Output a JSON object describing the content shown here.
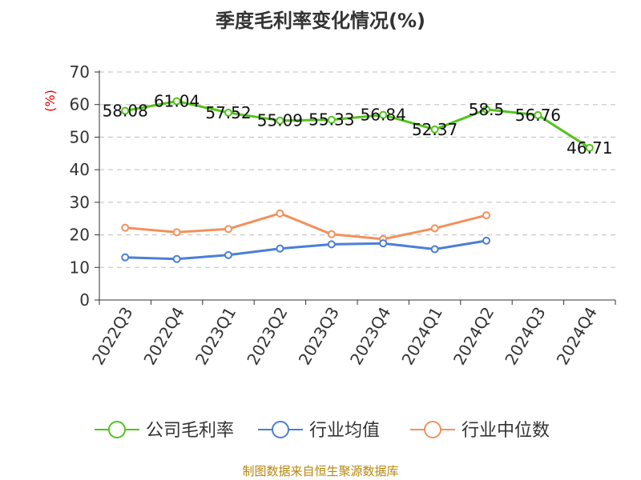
{
  "chart_data": {
    "type": "line",
    "title": "季度毛利率变化情况(%)",
    "ylabel": "(%)",
    "xlabel": "",
    "categories": [
      "2022Q3",
      "2022Q4",
      "2023Q1",
      "2023Q2",
      "2023Q3",
      "2023Q4",
      "2024Q1",
      "2024Q2",
      "2024Q3",
      "2024Q4"
    ],
    "ylim": [
      0,
      70
    ],
    "yticks": [
      0,
      10,
      20,
      30,
      40,
      50,
      60,
      70
    ],
    "grid": true,
    "legend_position": "bottom",
    "series": [
      {
        "name": "公司毛利率",
        "color": "#52c41a",
        "values": [
          58.08,
          61.04,
          57.52,
          55.09,
          55.33,
          56.84,
          52.37,
          58.5,
          56.76,
          46.71
        ],
        "labels": [
          "58.08",
          "61.04",
          "57.52",
          "55.09",
          "55.33",
          "56.84",
          "52.37",
          "58.5",
          "56.76",
          "46.71"
        ]
      },
      {
        "name": "行业均值",
        "color": "#4a7fd6",
        "values": [
          13.1,
          12.6,
          13.8,
          15.8,
          17.1,
          17.4,
          15.6,
          18.2,
          null,
          null
        ]
      },
      {
        "name": "行业中位数",
        "color": "#f4905c",
        "values": [
          22.2,
          20.8,
          21.8,
          26.6,
          20.2,
          18.7,
          22.0,
          26.0,
          null,
          null
        ]
      }
    ],
    "source": "制图数据来自恒生聚源数据库"
  }
}
